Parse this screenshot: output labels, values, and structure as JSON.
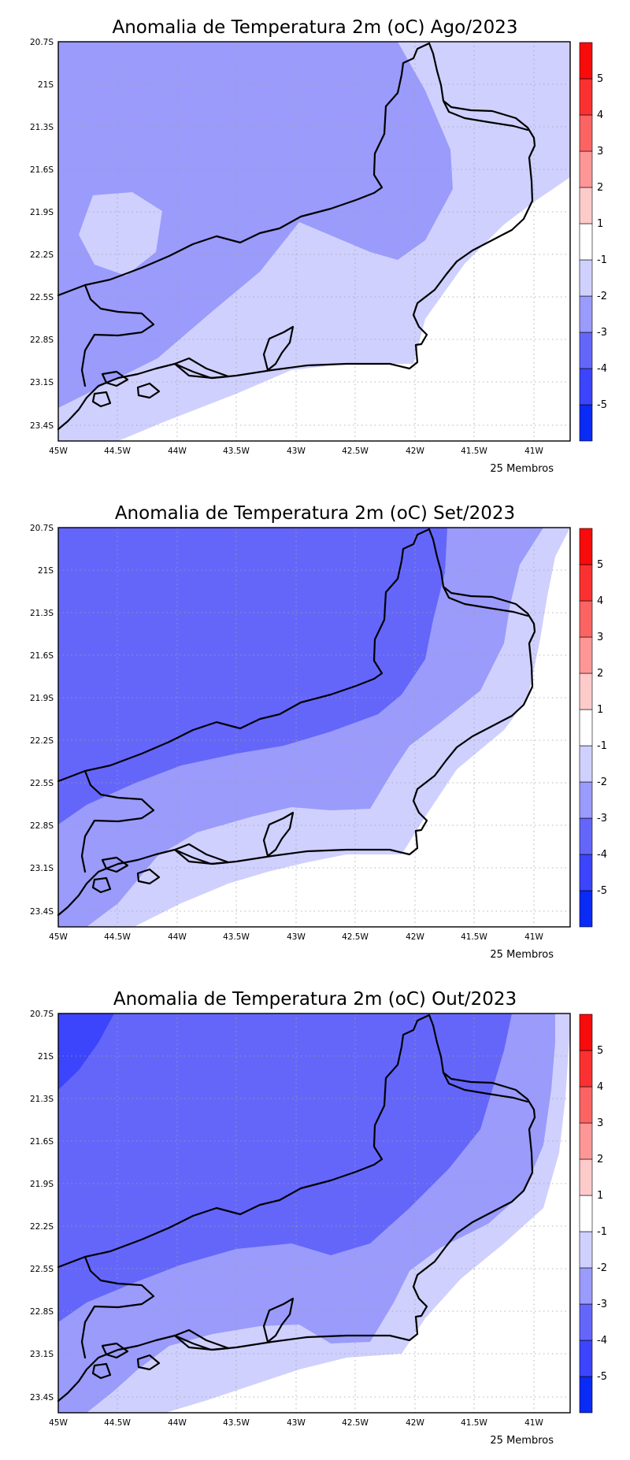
{
  "colorbar": {
    "colors": [
      "#0a2af5",
      "#3c45fb",
      "#6466fa",
      "#9a9bfb",
      "#cfd0fe",
      "#ffffff",
      "#fecbcb",
      "#fd9797",
      "#fc6464",
      "#fb3030",
      "#f80b0b"
    ],
    "labels": [
      "-5",
      "-4",
      "-3",
      "-2",
      "-1",
      "1",
      "2",
      "3",
      "4",
      "5"
    ]
  },
  "axes": {
    "lat_labels": [
      "20.7S",
      "21S",
      "21.3S",
      "21.6S",
      "21.9S",
      "22.2S",
      "22.5S",
      "22.8S",
      "23.1S",
      "23.4S"
    ],
    "lon_labels": [
      "45W",
      "44.5W",
      "44W",
      "43.5W",
      "43W",
      "42.5W",
      "42W",
      "41.5W",
      "41W"
    ]
  },
  "panels": [
    {
      "title": "Anomalia de Temperatura 2m (oC) Ago/2023",
      "footer": "25 Membros",
      "background_class": "-3 to -2",
      "zones": [
        "-2 to -1 (east inland, south band)",
        "> -1 (coast)"
      ]
    },
    {
      "title": "Anomalia de Temperatura 2m (oC) Set/2023",
      "footer": "25 Membros",
      "background_class": "-4 to -3",
      "zones": [
        "-3 to -2",
        "-2 to -1",
        "> -1"
      ]
    },
    {
      "title": "Anomalia de Temperatura 2m (oC) Out/2023",
      "footer": "25 Membros",
      "background_class": "-4 to -3",
      "zones": [
        "-5 to -4 (northwest corner)",
        "-3 to -2",
        "-2 to -1",
        "> -1"
      ]
    }
  ]
}
